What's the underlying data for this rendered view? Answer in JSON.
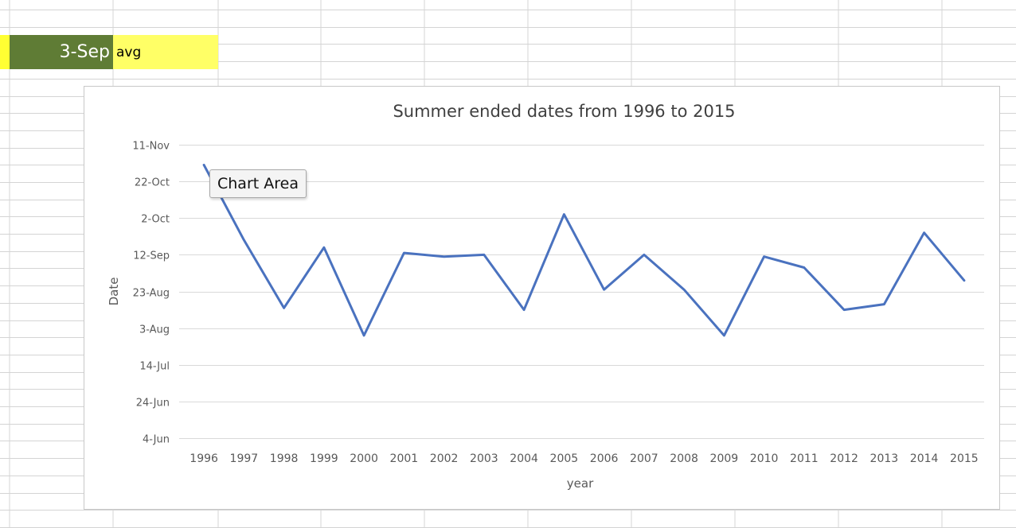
{
  "sheet": {
    "cell_value": "3-Sep",
    "cell_label": "avg"
  },
  "tooltip": "Chart Area",
  "colors": {
    "line": "#4a72bf",
    "gridline": "#d9d9d9",
    "text": "#595959",
    "title": "#404040",
    "green_cell": "#5f7c35",
    "yellow_cell": "#ffff66"
  },
  "chart_data": {
    "type": "line",
    "title": "Summer ended dates from 1996 to 2015",
    "xlabel": "year",
    "ylabel": "Date",
    "categories": [
      "1996",
      "1997",
      "1998",
      "1999",
      "2000",
      "2001",
      "2002",
      "2003",
      "2004",
      "2005",
      "2006",
      "2007",
      "2008",
      "2009",
      "2010",
      "2011",
      "2012",
      "2013",
      "2014",
      "2015"
    ],
    "y_tick_labels": [
      "4-Jun",
      "24-Jun",
      "14-Jul",
      "3-Aug",
      "23-Aug",
      "12-Sep",
      "2-Oct",
      "22-Oct",
      "11-Nov"
    ],
    "y_ticks": [
      "2016-06-04",
      "2016-06-24",
      "2016-07-14",
      "2016-08-03",
      "2016-08-23",
      "2016-09-12",
      "2016-10-02",
      "2016-10-22",
      "2016-11-11"
    ],
    "ylim": [
      "2016-06-04",
      "2016-11-11"
    ],
    "values": [
      "2016-10-31",
      "2016-09-20",
      "2016-08-14",
      "2016-09-16",
      "2016-07-30",
      "2016-09-13",
      "2016-09-11",
      "2016-09-12",
      "2016-08-13",
      "2016-10-04",
      "2016-08-24",
      "2016-09-12",
      "2016-08-24",
      "2016-07-30",
      "2016-09-11",
      "2016-09-05",
      "2016-08-13",
      "2016-08-16",
      "2016-09-24",
      "2016-08-29"
    ],
    "grid": true,
    "legend": "none"
  }
}
